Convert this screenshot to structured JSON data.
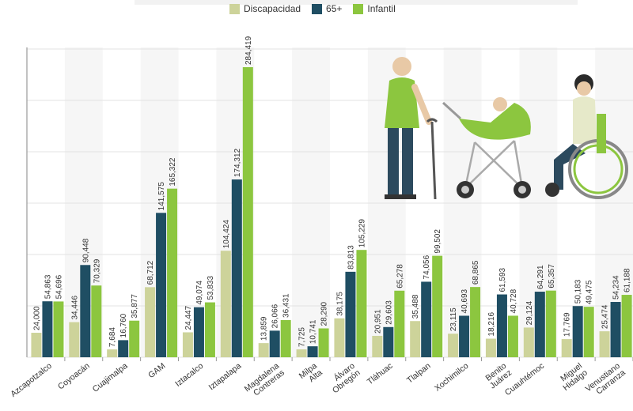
{
  "colors": {
    "discapacidad": "#cdd39a",
    "mayores": "#1f4e63",
    "infantil": "#8cc63f",
    "grid": "#e3e3e3",
    "background_band": "#f2f2f2"
  },
  "chart_data": {
    "type": "bar",
    "title": "",
    "xlabel": "",
    "ylabel": "",
    "ylim": [
      0,
      300000
    ],
    "grid": true,
    "legend_position": "top-center",
    "categories": [
      "Azcapotzalco",
      "Coyoacán",
      "Cuajimalpa",
      "GAM",
      "Iztacalco",
      "Iztapalapa",
      "Magdalena Contreras",
      "Milpa Alta",
      "Álvaro Obregón",
      "Tláhuac",
      "Tlalpan",
      "Xochimilco",
      "Benito Juárez",
      "Cuauhtémoc",
      "Miguel Hidalgo",
      "Venustiano Carranza"
    ],
    "series": [
      {
        "name": "Discapacidad",
        "values": [
          24000,
          34446,
          7684,
          68712,
          24447,
          104424,
          13859,
          7725,
          38175,
          20951,
          35488,
          23115,
          18216,
          29124,
          17769,
          25474
        ],
        "labels": [
          "24,000",
          "34,446",
          "7,684",
          "68,712",
          "24,447",
          "104,424",
          "13,859",
          "7,725",
          "38,175",
          "20,951",
          "35,488",
          "23,115",
          "18,216",
          "29,124",
          "17,769",
          "25,474"
        ]
      },
      {
        "name": "65+",
        "values": [
          54863,
          90448,
          16760,
          141575,
          49074,
          174312,
          26066,
          10741,
          83813,
          29603,
          74056,
          40693,
          61593,
          64291,
          50183,
          54234
        ],
        "labels": [
          "54,863",
          "90,448",
          "16,760",
          "141,575",
          "49,074",
          "174,312",
          "26,066",
          "10,741",
          "83,813",
          "29,603",
          "74,056",
          "40,693",
          "61,593",
          "64,291",
          "50,183",
          "54,234"
        ]
      },
      {
        "name": "Infantil",
        "values": [
          54696,
          70329,
          35877,
          165322,
          53833,
          284419,
          36431,
          28290,
          105229,
          65278,
          99502,
          68865,
          40728,
          65357,
          49475,
          61188
        ],
        "labels": [
          "54,696",
          "70,329",
          "35,877",
          "165,322",
          "53,833",
          "284,419",
          "36,431",
          "28,290",
          "105,229",
          "65,278",
          "99,502",
          "68,865",
          "40,728",
          "65,357",
          "49,475",
          "61,188"
        ]
      }
    ]
  },
  "illustrations": [
    "elderly-man-with-cane-icon",
    "baby-stroller-icon",
    "wheelchair-user-icon"
  ]
}
